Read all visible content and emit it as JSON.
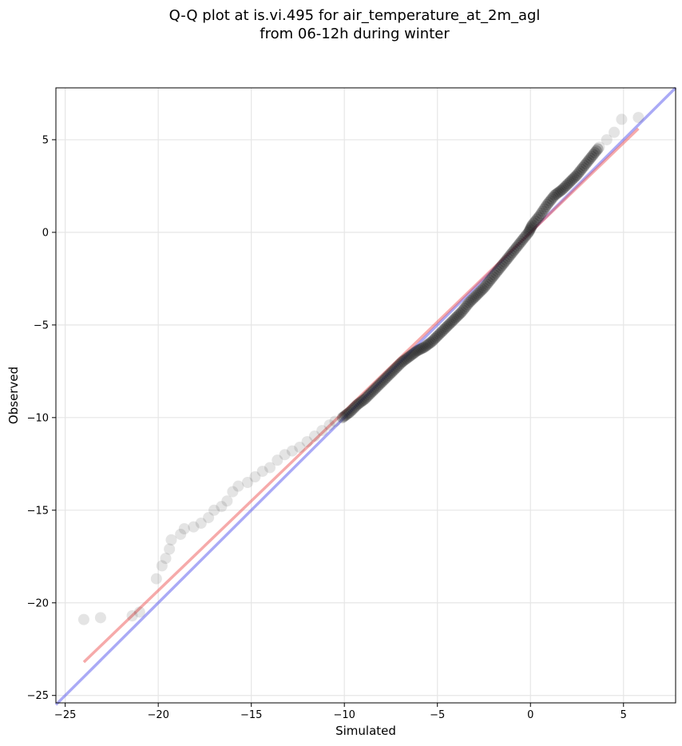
{
  "chart_data": {
    "type": "scatter",
    "title": [
      "Q-Q plot at is.vi.495 for air_temperature_at_2m_agl",
      "from 06-12h during winter"
    ],
    "xlabel": "Simulated",
    "ylabel": "Observed",
    "xlim": [
      -25.5,
      7.8
    ],
    "ylim": [
      -25.4,
      7.8
    ],
    "xticks": [
      -25,
      -20,
      -15,
      -10,
      -5,
      0,
      5
    ],
    "yticks": [
      -25,
      -20,
      -15,
      -10,
      -5,
      0,
      5
    ],
    "grid": true,
    "reference_line": {
      "color": "#5555ee",
      "from": [
        -25.5,
        -25.5
      ],
      "to": [
        7.8,
        7.8
      ]
    },
    "fit_line": {
      "color": "#ee5555",
      "from": [
        -24.0,
        -23.2
      ],
      "to": [
        5.8,
        5.6
      ]
    },
    "points": [
      [
        -24.0,
        -20.9
      ],
      [
        -23.1,
        -20.8
      ],
      [
        -21.4,
        -20.7
      ],
      [
        -21.0,
        -20.5
      ],
      [
        -20.1,
        -18.7
      ],
      [
        -19.8,
        -18.0
      ],
      [
        -19.6,
        -17.6
      ],
      [
        -19.4,
        -17.1
      ],
      [
        -19.3,
        -16.6
      ],
      [
        -18.8,
        -16.3
      ],
      [
        -18.6,
        -16.0
      ],
      [
        -18.1,
        -15.9
      ],
      [
        -17.7,
        -15.7
      ],
      [
        -17.3,
        -15.4
      ],
      [
        -17.0,
        -15.0
      ],
      [
        -16.6,
        -14.8
      ],
      [
        -16.3,
        -14.5
      ],
      [
        -16.0,
        -14.0
      ],
      [
        -15.7,
        -13.7
      ],
      [
        -15.2,
        -13.5
      ],
      [
        -14.8,
        -13.2
      ],
      [
        -14.4,
        -12.9
      ],
      [
        -14.0,
        -12.7
      ],
      [
        -13.6,
        -12.3
      ],
      [
        -13.2,
        -12.0
      ],
      [
        -12.8,
        -11.8
      ],
      [
        -12.4,
        -11.6
      ],
      [
        -12.0,
        -11.3
      ],
      [
        -11.6,
        -11.0
      ],
      [
        -11.2,
        -10.7
      ],
      [
        -10.8,
        -10.4
      ],
      [
        -10.5,
        -10.2
      ],
      [
        -10.1,
        -10.0
      ],
      [
        -9.7,
        -9.7
      ],
      [
        -9.3,
        -9.3
      ],
      [
        -8.9,
        -9.0
      ],
      [
        -8.5,
        -8.6
      ],
      [
        -8.1,
        -8.2
      ],
      [
        -7.7,
        -7.8
      ],
      [
        -7.3,
        -7.4
      ],
      [
        -6.9,
        -7.0
      ],
      [
        -6.5,
        -6.7
      ],
      [
        -6.1,
        -6.4
      ],
      [
        -5.7,
        -6.2
      ],
      [
        -5.3,
        -5.9
      ],
      [
        -4.9,
        -5.5
      ],
      [
        -4.5,
        -5.1
      ],
      [
        -4.1,
        -4.7
      ],
      [
        -3.7,
        -4.3
      ],
      [
        -3.3,
        -3.8
      ],
      [
        -2.9,
        -3.4
      ],
      [
        -2.5,
        -3.0
      ],
      [
        -2.1,
        -2.5
      ],
      [
        -1.7,
        -2.0
      ],
      [
        -1.3,
        -1.5
      ],
      [
        -0.9,
        -1.0
      ],
      [
        -0.5,
        -0.5
      ],
      [
        -0.1,
        0.0
      ],
      [
        0.1,
        0.4
      ],
      [
        0.5,
        0.9
      ],
      [
        0.9,
        1.5
      ],
      [
        1.3,
        2.0
      ],
      [
        1.7,
        2.3
      ],
      [
        2.1,
        2.7
      ],
      [
        2.5,
        3.1
      ],
      [
        2.9,
        3.6
      ],
      [
        3.3,
        4.1
      ],
      [
        3.7,
        4.6
      ],
      [
        4.1,
        5.0
      ],
      [
        4.5,
        5.4
      ],
      [
        4.9,
        6.1
      ],
      [
        5.8,
        6.2
      ]
    ]
  }
}
